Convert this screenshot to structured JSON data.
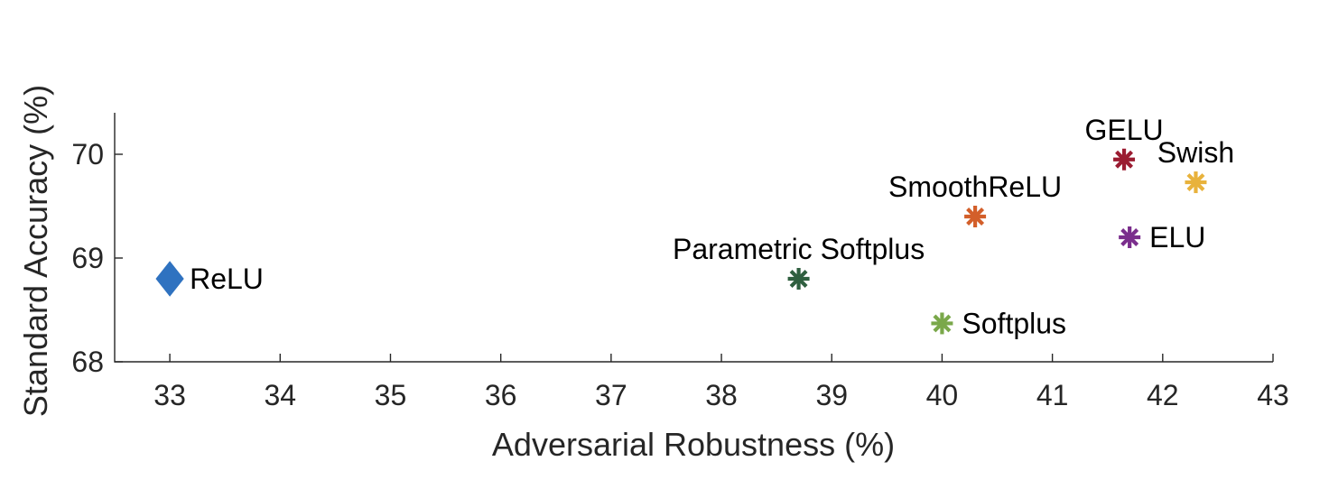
{
  "chart_data": {
    "type": "scatter",
    "title": "",
    "xlabel": "Adversarial Robustness (%)",
    "ylabel": "Standard Accuracy (%)",
    "xlim": [
      32.5,
      43
    ],
    "ylim": [
      68,
      70.4
    ],
    "xticks": [
      33,
      34,
      35,
      36,
      37,
      38,
      39,
      40,
      41,
      42,
      43
    ],
    "yticks": [
      68,
      69,
      70
    ],
    "grid": false,
    "points": [
      {
        "label": "ReLU",
        "x": 33.0,
        "y": 68.8,
        "marker": "diamond",
        "color": "#2f72c0",
        "label_pos": "right"
      },
      {
        "label": "Parametric Softplus",
        "x": 38.7,
        "y": 68.8,
        "marker": "asterisk",
        "color": "#2f5f3f",
        "label_pos": "above"
      },
      {
        "label": "Softplus",
        "x": 40.0,
        "y": 68.37,
        "marker": "asterisk",
        "color": "#7aa84a",
        "label_pos": "right"
      },
      {
        "label": "SmoothReLU",
        "x": 40.3,
        "y": 69.4,
        "marker": "asterisk",
        "color": "#d35f2a",
        "label_pos": "above"
      },
      {
        "label": "GELU",
        "x": 41.65,
        "y": 69.95,
        "marker": "asterisk",
        "color": "#9b1c31",
        "label_pos": "above"
      },
      {
        "label": "ELU",
        "x": 41.7,
        "y": 69.2,
        "marker": "asterisk",
        "color": "#7a2d8c",
        "label_pos": "right"
      },
      {
        "label": "Swish",
        "x": 42.3,
        "y": 69.73,
        "marker": "asterisk",
        "color": "#e8b23c",
        "label_pos": "above"
      }
    ]
  }
}
